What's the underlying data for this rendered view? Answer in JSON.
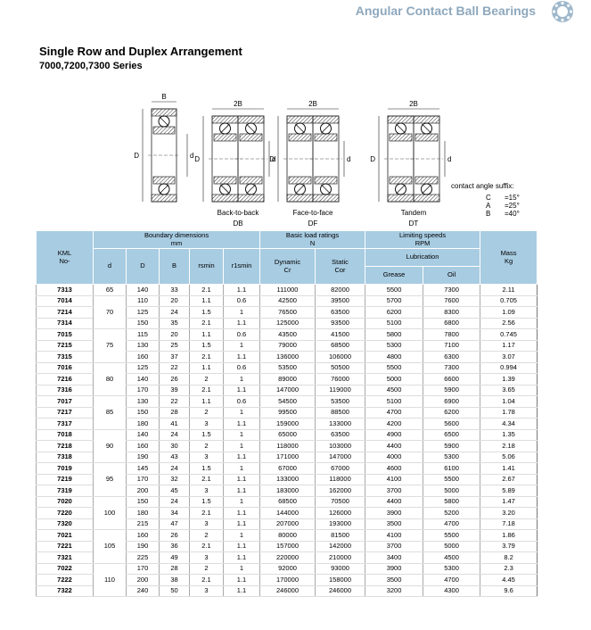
{
  "header": {
    "title": "Angular Contact Ball Bearings"
  },
  "heading": {
    "title": "Single Row and Duplex Arrangement",
    "subtitle": "7000,7200,7300 Series"
  },
  "diagram": {
    "single": {
      "width": "B",
      "outer": "D",
      "inner": "d"
    },
    "arrangements": [
      {
        "width": "2B",
        "outer": "D",
        "inner": "d",
        "name": "Back-to-back",
        "code": "DB"
      },
      {
        "width": "2B",
        "outer": "D",
        "inner": "d",
        "name": "Face-to-face",
        "code": "DF"
      },
      {
        "width": "2B",
        "outer": "D",
        "inner": "d",
        "name": "Tandem",
        "code": "DT"
      }
    ],
    "contact": {
      "title": "contact angle suffix:",
      "items": [
        {
          "code": "C",
          "angle": "=15°"
        },
        {
          "code": "A",
          "angle": "=25°"
        },
        {
          "code": "B",
          "angle": "=40°"
        }
      ]
    }
  },
  "table": {
    "head": {
      "number": [
        "KML",
        "No-"
      ],
      "boundary": [
        "Boundary  dimensions",
        "mm"
      ],
      "columns": [
        "d",
        "D",
        "B",
        "rsmin",
        "r1smin"
      ],
      "load": [
        "Basic load ratings",
        "N"
      ],
      "dynamic": [
        "Dynamic",
        "Cr"
      ],
      "static": [
        "Static",
        "Cor"
      ],
      "speed": [
        "Limiting speeds",
        "RPM"
      ],
      "lubrication": "Lubrication",
      "grease": "Grease",
      "oil": "Oil",
      "mass": [
        "Mass",
        "Kg"
      ]
    },
    "groups": [
      {
        "d": "65",
        "rows": [
          [
            "7313",
            "140",
            "33",
            "2.1",
            "1.1",
            "111000",
            "82000",
            "5500",
            "7300",
            "2.11"
          ]
        ]
      },
      {
        "d": "70",
        "rows": [
          [
            "7014",
            "110",
            "20",
            "1.1",
            "0.6",
            "42500",
            "39500",
            "5700",
            "7600",
            "0.705"
          ],
          [
            "7214",
            "125",
            "24",
            "1.5",
            "1",
            "76500",
            "63500",
            "6200",
            "8300",
            "1.09"
          ],
          [
            "7314",
            "150",
            "35",
            "2.1",
            "1.1",
            "125000",
            "93500",
            "5100",
            "6800",
            "2.56"
          ]
        ]
      },
      {
        "d": "75",
        "rows": [
          [
            "7015",
            "115",
            "20",
            "1.1",
            "0.6",
            "43500",
            "41500",
            "5800",
            "7800",
            "0.745"
          ],
          [
            "7215",
            "130",
            "25",
            "1.5",
            "1",
            "79000",
            "68500",
            "5300",
            "7100",
            "1.17"
          ],
          [
            "7315",
            "160",
            "37",
            "2.1",
            "1.1",
            "136000",
            "106000",
            "4800",
            "6300",
            "3.07"
          ]
        ]
      },
      {
        "d": "80",
        "rows": [
          [
            "7016",
            "125",
            "22",
            "1.1",
            "0.6",
            "53500",
            "50500",
            "5500",
            "7300",
            "0.994"
          ],
          [
            "7216",
            "140",
            "26",
            "2",
            "1",
            "89000",
            "76000",
            "5000",
            "6600",
            "1.39"
          ],
          [
            "7316",
            "170",
            "39",
            "2.1",
            "1.1",
            "147000",
            "119000",
            "4500",
            "5900",
            "3.65"
          ]
        ]
      },
      {
        "d": "85",
        "rows": [
          [
            "7017",
            "130",
            "22",
            "1.1",
            "0.6",
            "54500",
            "53500",
            "5100",
            "6900",
            "1.04"
          ],
          [
            "7217",
            "150",
            "28",
            "2",
            "1",
            "99500",
            "88500",
            "4700",
            "6200",
            "1.78"
          ],
          [
            "7317",
            "180",
            "41",
            "3",
            "1.1",
            "159000",
            "133000",
            "4200",
            "5600",
            "4.34"
          ]
        ]
      },
      {
        "d": "90",
        "rows": [
          [
            "7018",
            "140",
            "24",
            "1.5",
            "1",
            "65000",
            "63500",
            "4900",
            "6500",
            "1.35"
          ],
          [
            "7218",
            "160",
            "30",
            "2",
            "1",
            "118000",
            "103000",
            "4400",
            "5900",
            "2.18"
          ],
          [
            "7318",
            "190",
            "43",
            "3",
            "1.1",
            "171000",
            "147000",
            "4000",
            "5300",
            "5.06"
          ]
        ]
      },
      {
        "d": "95",
        "rows": [
          [
            "7019",
            "145",
            "24",
            "1.5",
            "1",
            "67000",
            "67000",
            "4600",
            "6100",
            "1.41"
          ],
          [
            "7219",
            "170",
            "32",
            "2.1",
            "1.1",
            "133000",
            "118000",
            "4100",
            "5500",
            "2.67"
          ],
          [
            "7319",
            "200",
            "45",
            "3",
            "1.1",
            "183000",
            "162000",
            "3700",
            "5000",
            "5.89"
          ]
        ]
      },
      {
        "d": "100",
        "rows": [
          [
            "7020",
            "150",
            "24",
            "1.5",
            "1",
            "68500",
            "70500",
            "4400",
            "5800",
            "1.47"
          ],
          [
            "7220",
            "180",
            "34",
            "2.1",
            "1.1",
            "144000",
            "126000",
            "3900",
            "5200",
            "3.20"
          ],
          [
            "7320",
            "215",
            "47",
            "3",
            "1.1",
            "207000",
            "193000",
            "3500",
            "4700",
            "7.18"
          ]
        ]
      },
      {
        "d": "105",
        "rows": [
          [
            "7021",
            "160",
            "26",
            "2",
            "1",
            "80000",
            "81500",
            "4100",
            "5500",
            "1.86"
          ],
          [
            "7221",
            "190",
            "36",
            "2.1",
            "1.1",
            "157000",
            "142000",
            "3700",
            "5000",
            "3.79"
          ],
          [
            "7321",
            "225",
            "49",
            "3",
            "1.1",
            "220000",
            "210000",
            "3400",
            "4500",
            "8.2"
          ]
        ]
      },
      {
        "d": "110",
        "rows": [
          [
            "7022",
            "170",
            "28",
            "2",
            "1",
            "92000",
            "93000",
            "3900",
            "5300",
            "2.3"
          ],
          [
            "7222",
            "200",
            "38",
            "2.1",
            "1.1",
            "170000",
            "158000",
            "3500",
            "4700",
            "4.45"
          ],
          [
            "7322",
            "240",
            "50",
            "3",
            "1.1",
            "246000",
            "246000",
            "3200",
            "4300",
            "9.6"
          ]
        ]
      }
    ]
  }
}
